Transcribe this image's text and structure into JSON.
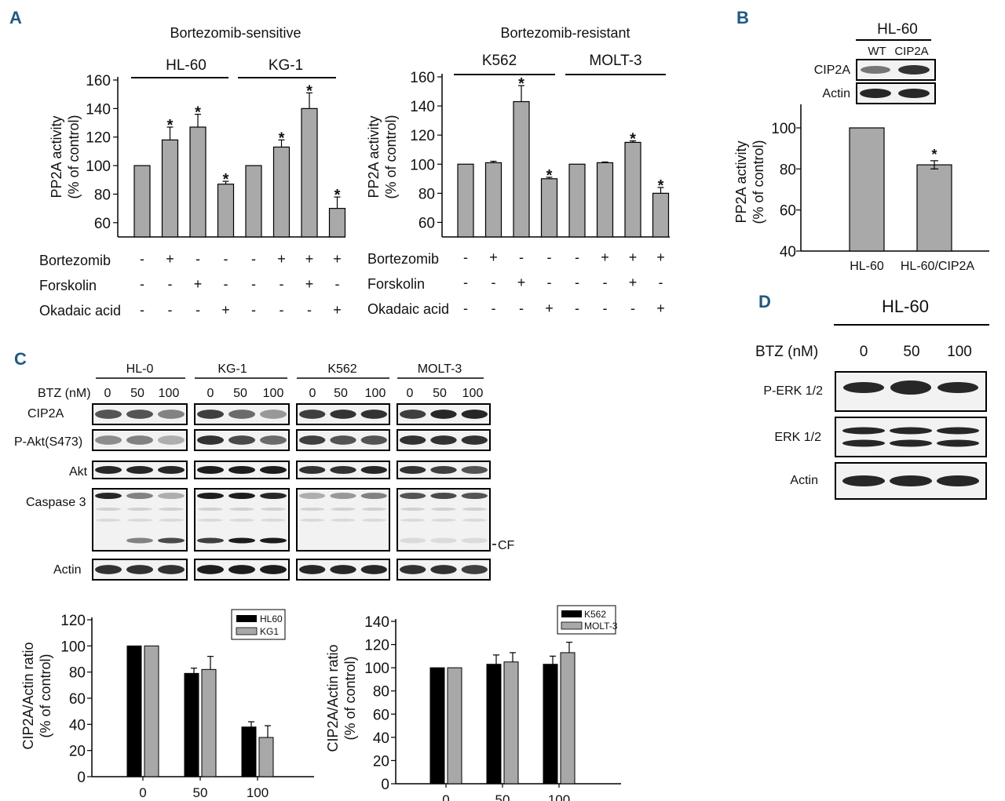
{
  "panels": {
    "A": "A",
    "B": "B",
    "C": "C",
    "D": "D"
  },
  "panelA": {
    "left": {
      "title": "Bortezomib-sensitive",
      "groups": [
        "HL-60",
        "KG-1"
      ],
      "ylabel1": "PP2A activity",
      "ylabel2": "(% of control)",
      "ticks": [
        "60",
        "80",
        "100",
        "120",
        "140",
        "160"
      ]
    },
    "right": {
      "title": "Bortezomib-resistant",
      "groups": [
        "K562",
        "MOLT-3"
      ],
      "ylabel1": "PP2A activity",
      "ylabel2": "(% of control)",
      "ticks": [
        "60",
        "80",
        "100",
        "120",
        "140",
        "160"
      ]
    },
    "treatments": [
      "Bortezomib",
      "Forskolin",
      "Okadaic acid"
    ],
    "sign_rows": [
      [
        "-",
        "+",
        "-",
        "-",
        "-",
        "+",
        "+",
        "+"
      ],
      [
        "-",
        "-",
        "+",
        "-",
        "-",
        "-",
        "+",
        "-"
      ],
      [
        "-",
        "-",
        "-",
        "+",
        "-",
        "-",
        "-",
        "+"
      ]
    ],
    "star": "*"
  },
  "panelB": {
    "blot_title": "HL-60",
    "lanes": [
      "WT",
      "CIP2A"
    ],
    "rows": [
      "CIP2A",
      "Actin"
    ],
    "ylabel1": "PP2A activity",
    "ylabel2": "(% of control)",
    "ticks": [
      "40",
      "60",
      "80",
      "100"
    ],
    "categories": [
      "HL-60",
      "HL-60/CIP2A"
    ],
    "star": "*"
  },
  "panelC": {
    "cells": [
      "HL-0",
      "KG-1",
      "K562",
      "MOLT-3"
    ],
    "btz_label": "BTZ (nM)",
    "doses": [
      "0",
      "50",
      "100"
    ],
    "rows": [
      "CIP2A",
      "P-Akt(S473)",
      "Akt",
      "Caspase 3",
      "Actin"
    ],
    "cf": "CF",
    "left": {
      "ylabel1": "CIP2A/Actin ratio",
      "ylabel2": "(% of control)",
      "ticks": [
        "0",
        "20",
        "40",
        "60",
        "80",
        "100",
        "120"
      ],
      "legend": [
        "HL60",
        "KG1"
      ]
    },
    "right": {
      "ylabel1": "CIP2A/Actin ratio",
      "ylabel2": "(% of control)",
      "ticks": [
        "0",
        "20",
        "40",
        "60",
        "80",
        "100",
        "120",
        "140"
      ],
      "legend": [
        "K562",
        "MOLT-3"
      ]
    }
  },
  "panelD": {
    "title": "HL-60",
    "btz_label": "BTZ (nM)",
    "doses": [
      "0",
      "50",
      "100"
    ],
    "rows": [
      "P-ERK 1/2",
      "ERK 1/2",
      "Actin"
    ]
  },
  "chart_data": [
    {
      "type": "bar",
      "panel": "A-left",
      "title": "Bortezomib-sensitive",
      "ylabel": "PP2A activity (% of control)",
      "ylim": [
        50,
        160
      ],
      "categories": [
        "HL-60 1",
        "HL-60 2",
        "HL-60 3",
        "HL-60 4",
        "KG-1 1",
        "KG-1 2",
        "KG-1 3",
        "KG-1 4"
      ],
      "values": [
        100,
        118,
        127,
        87,
        100,
        113,
        140,
        70
      ],
      "errors": [
        0,
        9,
        9,
        2,
        0,
        5,
        11,
        8
      ],
      "significant": [
        false,
        true,
        true,
        true,
        false,
        true,
        true,
        true
      ]
    },
    {
      "type": "bar",
      "panel": "A-right",
      "title": "Bortezomib-resistant",
      "ylabel": "PP2A activity (% of control)",
      "ylim": [
        50,
        160
      ],
      "categories": [
        "K562 1",
        "K562 2",
        "K562 3",
        "K562 4",
        "MOLT-3 1",
        "MOLT-3 2",
        "MOLT-3 3",
        "MOLT-3 4"
      ],
      "values": [
        100,
        101,
        143,
        90,
        100,
        101,
        115,
        80
      ],
      "errors": [
        0,
        1,
        11,
        1,
        0,
        0.5,
        1,
        4
      ],
      "significant": [
        false,
        false,
        true,
        true,
        false,
        false,
        true,
        true
      ]
    },
    {
      "type": "bar",
      "panel": "B",
      "ylabel": "PP2A activity (% of control)",
      "ylim": [
        40,
        100
      ],
      "categories": [
        "HL-60",
        "HL-60/CIP2A"
      ],
      "values": [
        100,
        82
      ],
      "errors": [
        0,
        2
      ],
      "significant": [
        false,
        true
      ]
    },
    {
      "type": "bar",
      "panel": "C-left",
      "ylabel": "CIP2A/Actin ratio (% of control)",
      "ylim": [
        0,
        120
      ],
      "categories": [
        "0",
        "50",
        "100"
      ],
      "series": [
        {
          "name": "HL60",
          "values": [
            100,
            79,
            38
          ],
          "errors": [
            0,
            4,
            4
          ],
          "color": "#000000"
        },
        {
          "name": "KG1",
          "values": [
            100,
            82,
            30
          ],
          "errors": [
            0,
            10,
            9
          ],
          "color": "#a8a8a8"
        }
      ]
    },
    {
      "type": "bar",
      "panel": "C-right",
      "ylabel": "CIP2A/Actin ratio (% of control)",
      "ylim": [
        0,
        140
      ],
      "categories": [
        "0",
        "50",
        "100"
      ],
      "series": [
        {
          "name": "K562",
          "values": [
            100,
            103,
            103
          ],
          "errors": [
            0,
            8,
            7
          ],
          "color": "#000000"
        },
        {
          "name": "MOLT-3",
          "values": [
            100,
            105,
            113
          ],
          "errors": [
            0,
            8,
            9
          ],
          "color": "#a8a8a8"
        }
      ]
    }
  ]
}
